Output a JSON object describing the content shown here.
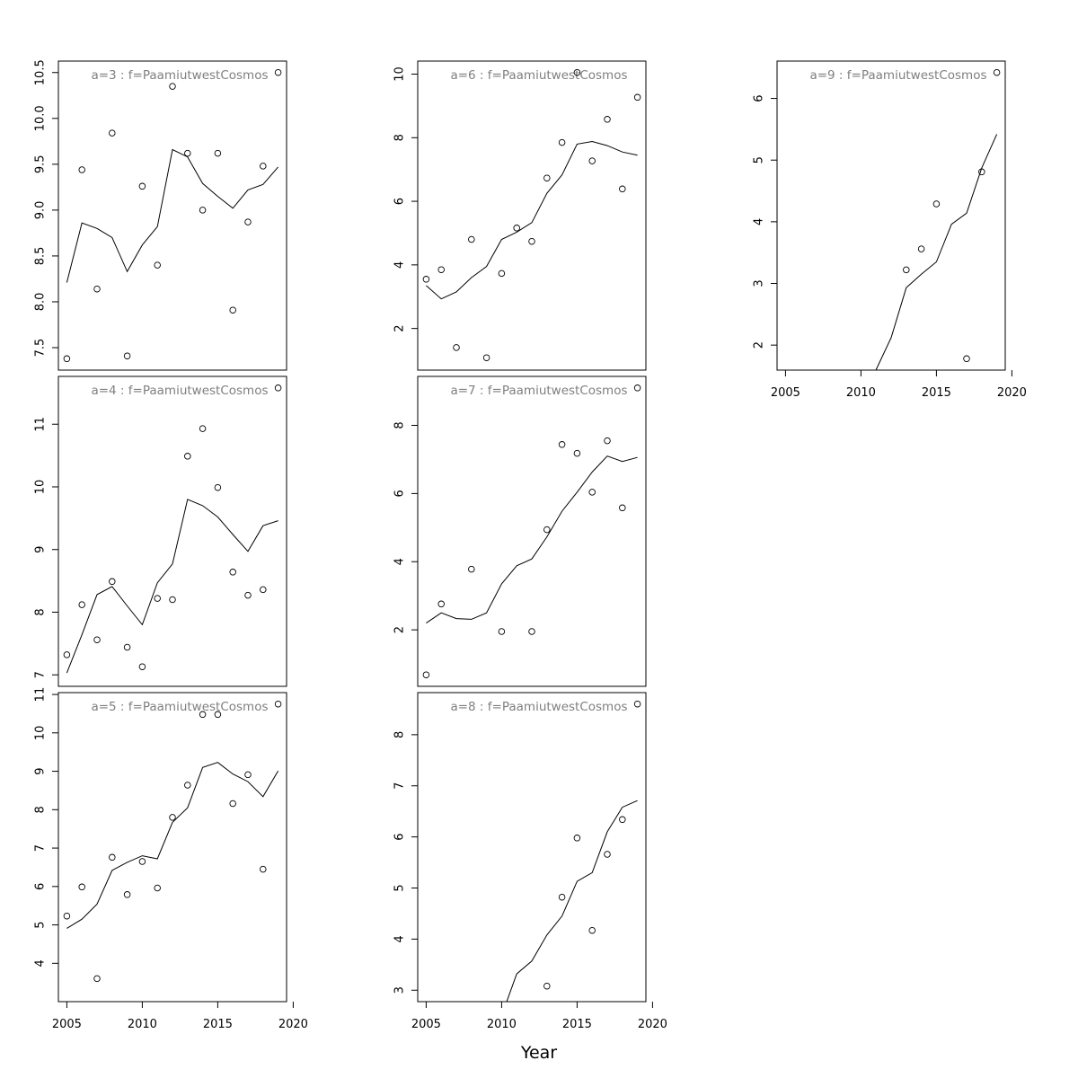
{
  "chart_data": {
    "type": "scatter",
    "xlabel": "Year",
    "x_ticks": [
      2005,
      2010,
      2015,
      2020
    ],
    "xlim": [
      2005,
      2019
    ],
    "panels": [
      {
        "title": "a=3  :  f=PaamiutwestCosmos",
        "ylim": [
          7.38,
          10.5
        ],
        "y_ticks": [
          7.5,
          8.0,
          8.5,
          9.0,
          9.5,
          10.0,
          10.5
        ],
        "points": [
          [
            2005,
            7.38
          ],
          [
            2006,
            9.44
          ],
          [
            2007,
            8.14
          ],
          [
            2008,
            9.84
          ],
          [
            2009,
            7.41
          ],
          [
            2010,
            9.26
          ],
          [
            2011,
            8.4
          ],
          [
            2012,
            10.35
          ],
          [
            2013,
            9.62
          ],
          [
            2014,
            9.0
          ],
          [
            2015,
            9.62
          ],
          [
            2016,
            7.91
          ],
          [
            2017,
            8.87
          ],
          [
            2018,
            9.48
          ],
          [
            2019,
            10.5
          ]
        ],
        "fit": [
          [
            2005,
            8.21
          ],
          [
            2006,
            8.86
          ],
          [
            2007,
            8.8
          ],
          [
            2008,
            8.7
          ],
          [
            2009,
            8.33
          ],
          [
            2010,
            8.62
          ],
          [
            2011,
            8.82
          ],
          [
            2012,
            9.66
          ],
          [
            2013,
            9.58
          ],
          [
            2014,
            9.29
          ],
          [
            2015,
            9.15
          ],
          [
            2016,
            9.02
          ],
          [
            2017,
            9.22
          ],
          [
            2018,
            9.28
          ],
          [
            2019,
            9.47
          ]
        ]
      },
      {
        "title": "a=4  :  f=PaamiutwestCosmos",
        "ylim": [
          7.0,
          11.58
        ],
        "y_ticks": [
          7,
          8,
          9,
          10,
          11
        ],
        "points": [
          [
            2005,
            7.32
          ],
          [
            2006,
            8.12
          ],
          [
            2007,
            7.56
          ],
          [
            2008,
            8.49
          ],
          [
            2009,
            7.44
          ],
          [
            2010,
            7.13
          ],
          [
            2011,
            8.22
          ],
          [
            2012,
            8.2
          ],
          [
            2013,
            10.49
          ],
          [
            2014,
            10.93
          ],
          [
            2015,
            9.99
          ],
          [
            2016,
            8.64
          ],
          [
            2017,
            8.27
          ],
          [
            2018,
            8.36
          ],
          [
            2019,
            11.58
          ]
        ],
        "fit": [
          [
            2005,
            7.03
          ],
          [
            2006,
            7.64
          ],
          [
            2007,
            8.28
          ],
          [
            2008,
            8.41
          ],
          [
            2009,
            8.1
          ],
          [
            2010,
            7.8
          ],
          [
            2011,
            8.47
          ],
          [
            2012,
            8.77
          ],
          [
            2013,
            9.8
          ],
          [
            2014,
            9.7
          ],
          [
            2015,
            9.52
          ],
          [
            2016,
            9.24
          ],
          [
            2017,
            8.97
          ],
          [
            2018,
            9.38
          ],
          [
            2019,
            9.46
          ]
        ]
      },
      {
        "title": "a=5  :  f=PaamiutwestCosmos",
        "ylim": [
          3.3,
          10.75
        ],
        "y_ticks": [
          4,
          5,
          6,
          7,
          8,
          9,
          10,
          11
        ],
        "points": [
          [
            2005,
            5.23
          ],
          [
            2006,
            5.99
          ],
          [
            2007,
            3.6
          ],
          [
            2008,
            6.76
          ],
          [
            2009,
            5.79
          ],
          [
            2010,
            6.65
          ],
          [
            2011,
            5.96
          ],
          [
            2012,
            7.8
          ],
          [
            2013,
            8.64
          ],
          [
            2014,
            10.48
          ],
          [
            2015,
            10.48
          ],
          [
            2016,
            8.16
          ],
          [
            2017,
            8.91
          ],
          [
            2018,
            6.45
          ],
          [
            2019,
            10.75
          ]
        ],
        "fit": [
          [
            2005,
            4.91
          ],
          [
            2006,
            5.15
          ],
          [
            2007,
            5.54
          ],
          [
            2008,
            6.42
          ],
          [
            2009,
            6.63
          ],
          [
            2010,
            6.8
          ],
          [
            2011,
            6.72
          ],
          [
            2012,
            7.67
          ],
          [
            2013,
            8.05
          ],
          [
            2014,
            9.1
          ],
          [
            2015,
            9.23
          ],
          [
            2016,
            8.93
          ],
          [
            2017,
            8.73
          ],
          [
            2018,
            8.34
          ],
          [
            2019,
            9.01
          ]
        ]
      },
      {
        "title": "a=6  :  f=PaamiutwestCosmos",
        "ylim": [
          1.05,
          10.05
        ],
        "y_ticks": [
          2,
          4,
          6,
          8,
          10
        ],
        "points": [
          [
            2005,
            3.55
          ],
          [
            2006,
            3.85
          ],
          [
            2007,
            1.4
          ],
          [
            2008,
            4.8
          ],
          [
            2009,
            1.08
          ],
          [
            2010,
            3.73
          ],
          [
            2011,
            5.16
          ],
          [
            2012,
            4.74
          ],
          [
            2013,
            6.73
          ],
          [
            2014,
            7.85
          ],
          [
            2015,
            10.05
          ],
          [
            2016,
            7.27
          ],
          [
            2017,
            8.58
          ],
          [
            2018,
            6.39
          ],
          [
            2019,
            9.27
          ]
        ],
        "fit": [
          [
            2005,
            3.35
          ],
          [
            2006,
            2.93
          ],
          [
            2007,
            3.15
          ],
          [
            2008,
            3.6
          ],
          [
            2009,
            3.95
          ],
          [
            2010,
            4.8
          ],
          [
            2011,
            5.03
          ],
          [
            2012,
            5.33
          ],
          [
            2013,
            6.25
          ],
          [
            2014,
            6.83
          ],
          [
            2015,
            7.8
          ],
          [
            2016,
            7.88
          ],
          [
            2017,
            7.75
          ],
          [
            2018,
            7.55
          ],
          [
            2019,
            7.45
          ]
        ]
      },
      {
        "title": "a=7  :  f=PaamiutwestCosmos",
        "ylim": [
          0.68,
          9.1
        ],
        "y_ticks": [
          2,
          4,
          6,
          8
        ],
        "points": [
          [
            2005,
            0.68
          ],
          [
            2006,
            2.76
          ],
          [
            2007,
            null
          ],
          [
            2008,
            3.78
          ],
          [
            2009,
            null
          ],
          [
            2010,
            1.95
          ],
          [
            2011,
            null
          ],
          [
            2012,
            1.95
          ],
          [
            2013,
            4.94
          ],
          [
            2014,
            7.44
          ],
          [
            2015,
            7.18
          ],
          [
            2016,
            6.04
          ],
          [
            2017,
            7.55
          ],
          [
            2018,
            5.58
          ],
          [
            2019,
            9.1
          ]
        ],
        "fit": [
          [
            2005,
            2.2
          ],
          [
            2006,
            2.5
          ],
          [
            2007,
            2.33
          ],
          [
            2008,
            2.31
          ],
          [
            2009,
            2.5
          ],
          [
            2010,
            3.35
          ],
          [
            2011,
            3.88
          ],
          [
            2012,
            4.08
          ],
          [
            2013,
            4.73
          ],
          [
            2014,
            5.48
          ],
          [
            2015,
            6.04
          ],
          [
            2016,
            6.63
          ],
          [
            2017,
            7.1
          ],
          [
            2018,
            6.94
          ],
          [
            2019,
            7.06
          ]
        ]
      },
      {
        "title": "a=8  :  f=PaamiutwestCosmos",
        "ylim": [
          3.0,
          8.6
        ],
        "y_ticks": [
          3,
          4,
          5,
          6,
          7,
          8
        ],
        "points": [
          [
            2013,
            3.08
          ],
          [
            2014,
            4.82
          ],
          [
            2015,
            5.98
          ],
          [
            2016,
            4.17
          ],
          [
            2017,
            5.66
          ],
          [
            2018,
            6.34
          ],
          [
            2019,
            8.6
          ]
        ],
        "fit": [
          [
            2010,
            2.5
          ],
          [
            2011,
            3.32
          ],
          [
            2012,
            3.57
          ],
          [
            2013,
            4.08
          ],
          [
            2014,
            4.45
          ],
          [
            2015,
            5.13
          ],
          [
            2016,
            5.3
          ],
          [
            2017,
            6.1
          ],
          [
            2018,
            6.58
          ],
          [
            2019,
            6.71
          ]
        ]
      },
      {
        "title": "a=9  :  f=PaamiutwestCosmos",
        "ylim": [
          1.78,
          6.42
        ],
        "y_ticks": [
          2,
          3,
          4,
          5,
          6
        ],
        "points": [
          [
            2013,
            3.22
          ],
          [
            2014,
            3.56
          ],
          [
            2015,
            4.29
          ],
          [
            2017,
            1.78
          ],
          [
            2018,
            4.81
          ],
          [
            2019,
            6.42
          ]
        ],
        "fit": [
          [
            2011,
            1.6
          ],
          [
            2012,
            2.12
          ],
          [
            2013,
            2.93
          ],
          [
            2014,
            3.15
          ],
          [
            2015,
            3.35
          ],
          [
            2016,
            3.96
          ],
          [
            2017,
            4.14
          ],
          [
            2018,
            4.87
          ],
          [
            2019,
            5.42
          ]
        ]
      }
    ]
  }
}
